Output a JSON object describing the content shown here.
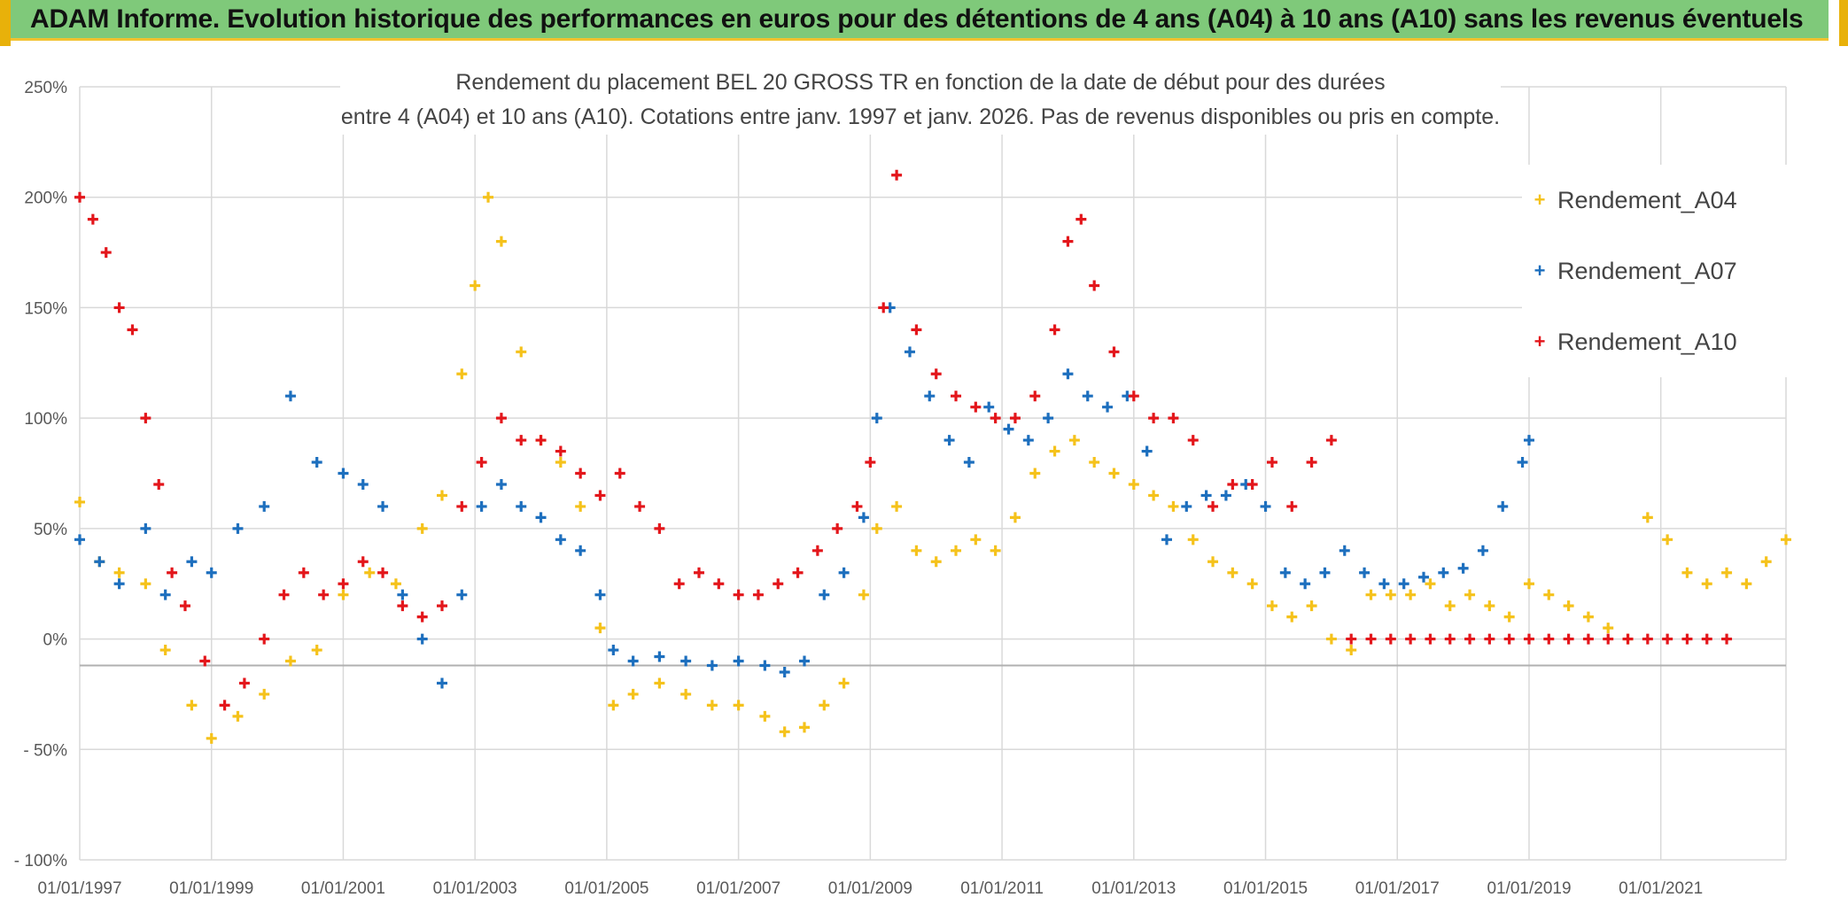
{
  "banner": {
    "text": "ADAM Informe. Evolution historique des performances en euros pour des détentions de 4 ans (A04) à 10 ans (A10) sans les revenus éventuels"
  },
  "chart_data": {
    "type": "scatter",
    "title_line1": "Rendement du placement BEL 20 GROSS TR en fonction de la date de début pour des durées",
    "title_line2": "entre 4 (A04) et 10 ans (A10). Cotations entre janv. 1997 et janv. 2026. Pas de revenus disponibles ou pris en compte.",
    "xlabel": "",
    "ylabel": "",
    "xlim": [
      1997.0,
      2022.9
    ],
    "ylim": [
      -100,
      250
    ],
    "x_ticks": [
      1997,
      1999,
      2001,
      2003,
      2005,
      2007,
      2009,
      2011,
      2013,
      2015,
      2017,
      2019,
      2021
    ],
    "x_tick_labels": [
      "01/01/1997",
      "01/01/1999",
      "01/01/2001",
      "01/01/2003",
      "01/01/2005",
      "01/01/2007",
      "01/01/2009",
      "01/01/2011",
      "01/01/2013",
      "01/01/2015",
      "01/01/2017",
      "01/01/2019",
      "01/01/2021"
    ],
    "y_ticks": [
      -100,
      -50,
      0,
      50,
      100,
      150,
      200,
      250
    ],
    "y_tick_labels": [
      "- 100%",
      "- 50%",
      "0%",
      "50%",
      "100%",
      "150%",
      "200%",
      "250%"
    ],
    "reference_line": -12,
    "grid": true,
    "legend_position": "right",
    "series": [
      {
        "name": "Rendement_A04",
        "color": "#f5c21b",
        "x": [
          1997.0,
          1997.3,
          1997.6,
          1998.0,
          1998.3,
          1998.7,
          1999.0,
          1999.4,
          1999.8,
          2000.2,
          2000.6,
          2001.0,
          2001.4,
          2001.8,
          2002.2,
          2002.5,
          2002.8,
          2003.0,
          2003.2,
          2003.4,
          2003.7,
          2004.0,
          2004.3,
          2004.6,
          2004.9,
          2005.1,
          2005.4,
          2005.8,
          2006.2,
          2006.6,
          2007.0,
          2007.4,
          2007.7,
          2008.0,
          2008.3,
          2008.6,
          2008.9,
          2009.1,
          2009.4,
          2009.7,
          2010.0,
          2010.3,
          2010.6,
          2010.9,
          2011.2,
          2011.5,
          2011.8,
          2012.1,
          2012.4,
          2012.7,
          2013.0,
          2013.3,
          2013.6,
          2013.9,
          2014.2,
          2014.5,
          2014.8,
          2015.1,
          2015.4,
          2015.7,
          2016.0,
          2016.3,
          2016.6,
          2016.9,
          2017.2,
          2017.5,
          2017.8,
          2018.1,
          2018.4,
          2018.7,
          2019.0,
          2019.3,
          2019.6,
          2019.9,
          2020.2,
          2020.5,
          2020.8,
          2021.1,
          2021.4,
          2021.7,
          2022.0,
          2022.3,
          2022.6,
          2022.9
        ],
        "values": [
          62,
          35,
          30,
          25,
          -5,
          -30,
          -45,
          -35,
          -25,
          -10,
          -5,
          20,
          30,
          25,
          50,
          65,
          120,
          160,
          200,
          180,
          130,
          90,
          80,
          60,
          5,
          -30,
          -25,
          -20,
          -25,
          -30,
          -30,
          -35,
          -42,
          -40,
          -30,
          -20,
          20,
          50,
          60,
          40,
          35,
          40,
          45,
          40,
          55,
          75,
          85,
          90,
          80,
          75,
          70,
          65,
          60,
          45,
          35,
          30,
          25,
          15,
          10,
          15,
          0,
          -5,
          20,
          20,
          20,
          25,
          15,
          20,
          15,
          10,
          25,
          20,
          15,
          10,
          5,
          0,
          55,
          45,
          30,
          25,
          30,
          25,
          35,
          45
        ]
      },
      {
        "name": "Rendement_A07",
        "color": "#1d6fbe",
        "x": [
          1997.0,
          1997.3,
          1997.6,
          1998.0,
          1998.3,
          1998.7,
          1999.0,
          1999.4,
          1999.8,
          2000.2,
          2000.6,
          2001.0,
          2001.3,
          2001.6,
          2001.9,
          2002.2,
          2002.5,
          2002.8,
          2003.1,
          2003.4,
          2003.7,
          2004.0,
          2004.3,
          2004.6,
          2004.9,
          2005.1,
          2005.4,
          2005.8,
          2006.2,
          2006.6,
          2007.0,
          2007.4,
          2007.7,
          2008.0,
          2008.3,
          2008.6,
          2008.9,
          2009.1,
          2009.3,
          2009.6,
          2009.9,
          2010.2,
          2010.5,
          2010.8,
          2011.1,
          2011.4,
          2011.7,
          2012.0,
          2012.3,
          2012.6,
          2012.9,
          2013.2,
          2013.5,
          2013.8,
          2014.1,
          2014.4,
          2014.7,
          2015.0,
          2015.3,
          2015.6,
          2015.9,
          2016.2,
          2016.5,
          2016.8,
          2017.1,
          2017.4,
          2017.7,
          2018.0,
          2018.3,
          2018.6,
          2018.9,
          2019.0
        ],
        "values": [
          45,
          35,
          25,
          50,
          20,
          35,
          30,
          50,
          60,
          110,
          80,
          75,
          70,
          60,
          20,
          0,
          -20,
          20,
          60,
          70,
          60,
          55,
          45,
          40,
          20,
          -5,
          -10,
          -8,
          -10,
          -12,
          -10,
          -12,
          -15,
          -10,
          20,
          30,
          55,
          100,
          150,
          130,
          110,
          90,
          80,
          105,
          95,
          90,
          100,
          120,
          110,
          105,
          110,
          85,
          45,
          60,
          65,
          65,
          70,
          60,
          30,
          25,
          30,
          40,
          30,
          25,
          25,
          28,
          30,
          32,
          40,
          60,
          80,
          90
        ]
      },
      {
        "name": "Rendement_A10",
        "color": "#e3161b",
        "x": [
          1997.0,
          1997.2,
          1997.4,
          1997.6,
          1997.8,
          1998.0,
          1998.2,
          1998.4,
          1998.6,
          1998.9,
          1999.2,
          1999.5,
          1999.8,
          2000.1,
          2000.4,
          2000.7,
          2001.0,
          2001.3,
          2001.6,
          2001.9,
          2002.2,
          2002.5,
          2002.8,
          2003.1,
          2003.4,
          2003.7,
          2004.0,
          2004.3,
          2004.6,
          2004.9,
          2005.2,
          2005.5,
          2005.8,
          2006.1,
          2006.4,
          2006.7,
          2007.0,
          2007.3,
          2007.6,
          2007.9,
          2008.2,
          2008.5,
          2008.8,
          2009.0,
          2009.2,
          2009.4,
          2009.7,
          2010.0,
          2010.3,
          2010.6,
          2010.9,
          2011.2,
          2011.5,
          2011.8,
          2012.0,
          2012.2,
          2012.4,
          2012.7,
          2013.0,
          2013.3,
          2013.6,
          2013.9,
          2014.2,
          2014.5,
          2014.8,
          2015.1,
          2015.4,
          2015.7,
          2016.0,
          2016.3,
          2016.6,
          2016.9,
          2017.2,
          2017.5,
          2017.8,
          2018.1,
          2018.4,
          2018.7,
          2019.0,
          2019.3,
          2019.6,
          2019.9,
          2020.2,
          2020.5,
          2020.8,
          2021.1,
          2021.4,
          2021.7,
          2022.0
        ],
        "values": [
          200,
          190,
          175,
          150,
          140,
          100,
          70,
          30,
          15,
          -10,
          -30,
          -20,
          0,
          20,
          30,
          20,
          25,
          35,
          30,
          15,
          10,
          15,
          60,
          80,
          100,
          90,
          90,
          85,
          75,
          65,
          75,
          60,
          50,
          25,
          30,
          25,
          20,
          20,
          25,
          30,
          40,
          50,
          60,
          80,
          150,
          210,
          140,
          120,
          110,
          105,
          100,
          100,
          110,
          140,
          180,
          190,
          160,
          130,
          110,
          100,
          100,
          90,
          60,
          70,
          70,
          80,
          60,
          80,
          90,
          0,
          0,
          0,
          0,
          0,
          0,
          0,
          0,
          0,
          0,
          0,
          0,
          0,
          0,
          0,
          0,
          0,
          0,
          0,
          0
        ]
      }
    ],
    "legend_entries": [
      "Rendement_A04",
      "Rendement_A07",
      "Rendement_A10"
    ]
  }
}
